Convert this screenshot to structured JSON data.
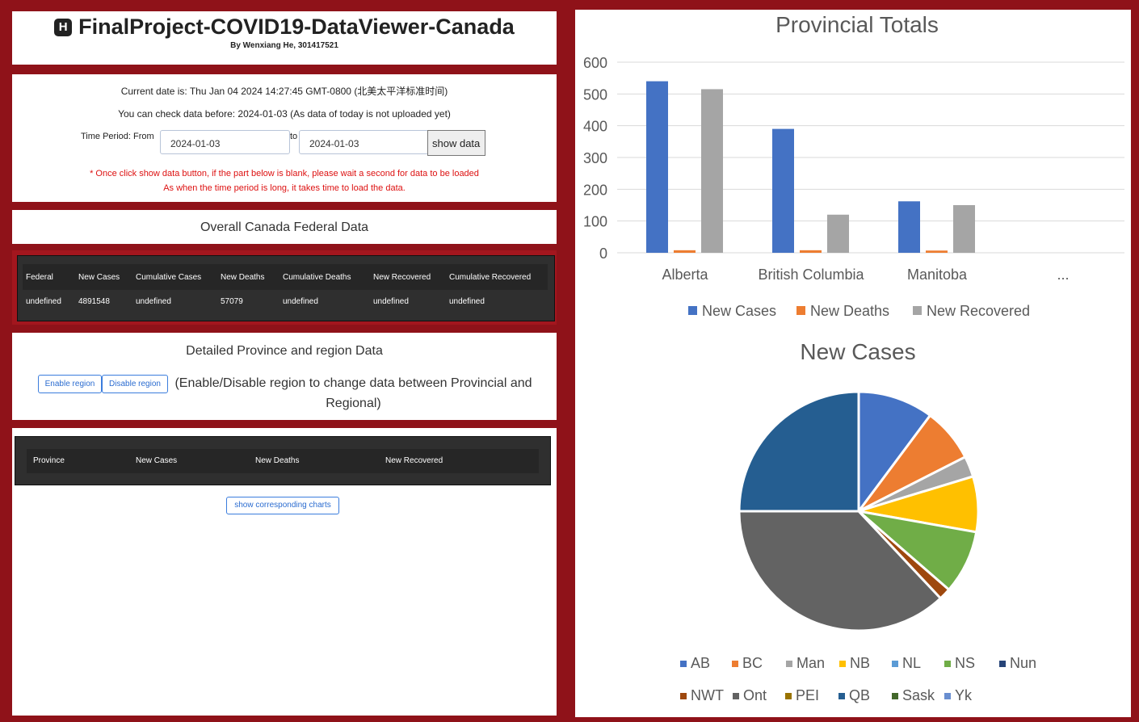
{
  "header": {
    "title": "FinalProject-COVID19-DataViewer-Canada",
    "byline": "By Wenxiang He, 301417521",
    "icon": "h-square-icon"
  },
  "controls": {
    "current_date": "Current date is: Thu Jan 04 2024 14:27:45 GMT-0800 (北美太平洋标准时间)",
    "check_note": "You can check data before: 2024-01-03 (As data of today is not uploaded yet)",
    "period_label": "Time Period: From",
    "from_value": "2024-01-03",
    "to_label": "to",
    "to_value": "2024-01-03",
    "show_button": "show data",
    "warning_1": "* Once click show data button, if the part below is blank, please wait a second for data to be loaded",
    "warning_2": "As when the time period is long, it takes time to load the data."
  },
  "federal": {
    "heading": "Overall Canada Federal Data",
    "columns": [
      "Federal",
      "New Cases",
      "Cumulative Cases",
      "New Deaths",
      "Cumulative Deaths",
      "New Recovered",
      "Cumulative Recovered"
    ],
    "row": [
      "undefined",
      "4891548",
      "undefined",
      "57079",
      "undefined",
      "undefined",
      "undefined"
    ]
  },
  "province": {
    "heading": "Detailed Province and region Data",
    "enable_label": "Enable region",
    "disable_label": "Disable region",
    "note": "(Enable/Disable region to change data between Provincial and Regional)",
    "columns": [
      "Province",
      "New Cases",
      "New Deaths",
      "New Recovered"
    ],
    "charts_button": "show corresponding charts"
  },
  "colors": {
    "frame": "#8f1219",
    "blue": "#4472c4",
    "orange": "#ed7d31",
    "gray": "#a5a5a5",
    "yellow": "#ffc000",
    "lightblue": "#5b9bd5",
    "green": "#70ad47",
    "navy": "#264478",
    "brown": "#9e480e",
    "darkgray": "#636363",
    "olive": "#997300",
    "steel": "#255e91",
    "darkgreen": "#43682b",
    "sky": "#698ed0"
  },
  "chart_data": [
    {
      "type": "bar",
      "title": "Provincial Totals",
      "categories": [
        "Alberta",
        "British Columbia",
        "Manitoba",
        "..."
      ],
      "series": [
        {
          "name": "New Cases",
          "values": [
            540,
            390,
            162,
            null
          ]
        },
        {
          "name": "New Deaths",
          "values": [
            8,
            8,
            7,
            null
          ]
        },
        {
          "name": "New Recovered",
          "values": [
            515,
            120,
            150,
            null
          ]
        }
      ],
      "ylim": [
        0,
        600
      ],
      "yticks": [
        "0",
        "100",
        "200",
        "300",
        "400",
        "500",
        "600"
      ],
      "grid": true,
      "legend": "bottom"
    },
    {
      "type": "pie",
      "title": "New Cases",
      "labels": [
        "AB",
        "BC",
        "Man",
        "NB",
        "NL",
        "NS",
        "Nun",
        "NWT",
        "Ont",
        "PEI",
        "QB",
        "Sask",
        "Yk"
      ],
      "values": [
        10.2,
        7.3,
        2.8,
        7.5,
        0,
        8.6,
        0,
        1.6,
        37.0,
        0,
        25.0,
        0,
        0
      ],
      "legend": "bottom"
    }
  ]
}
